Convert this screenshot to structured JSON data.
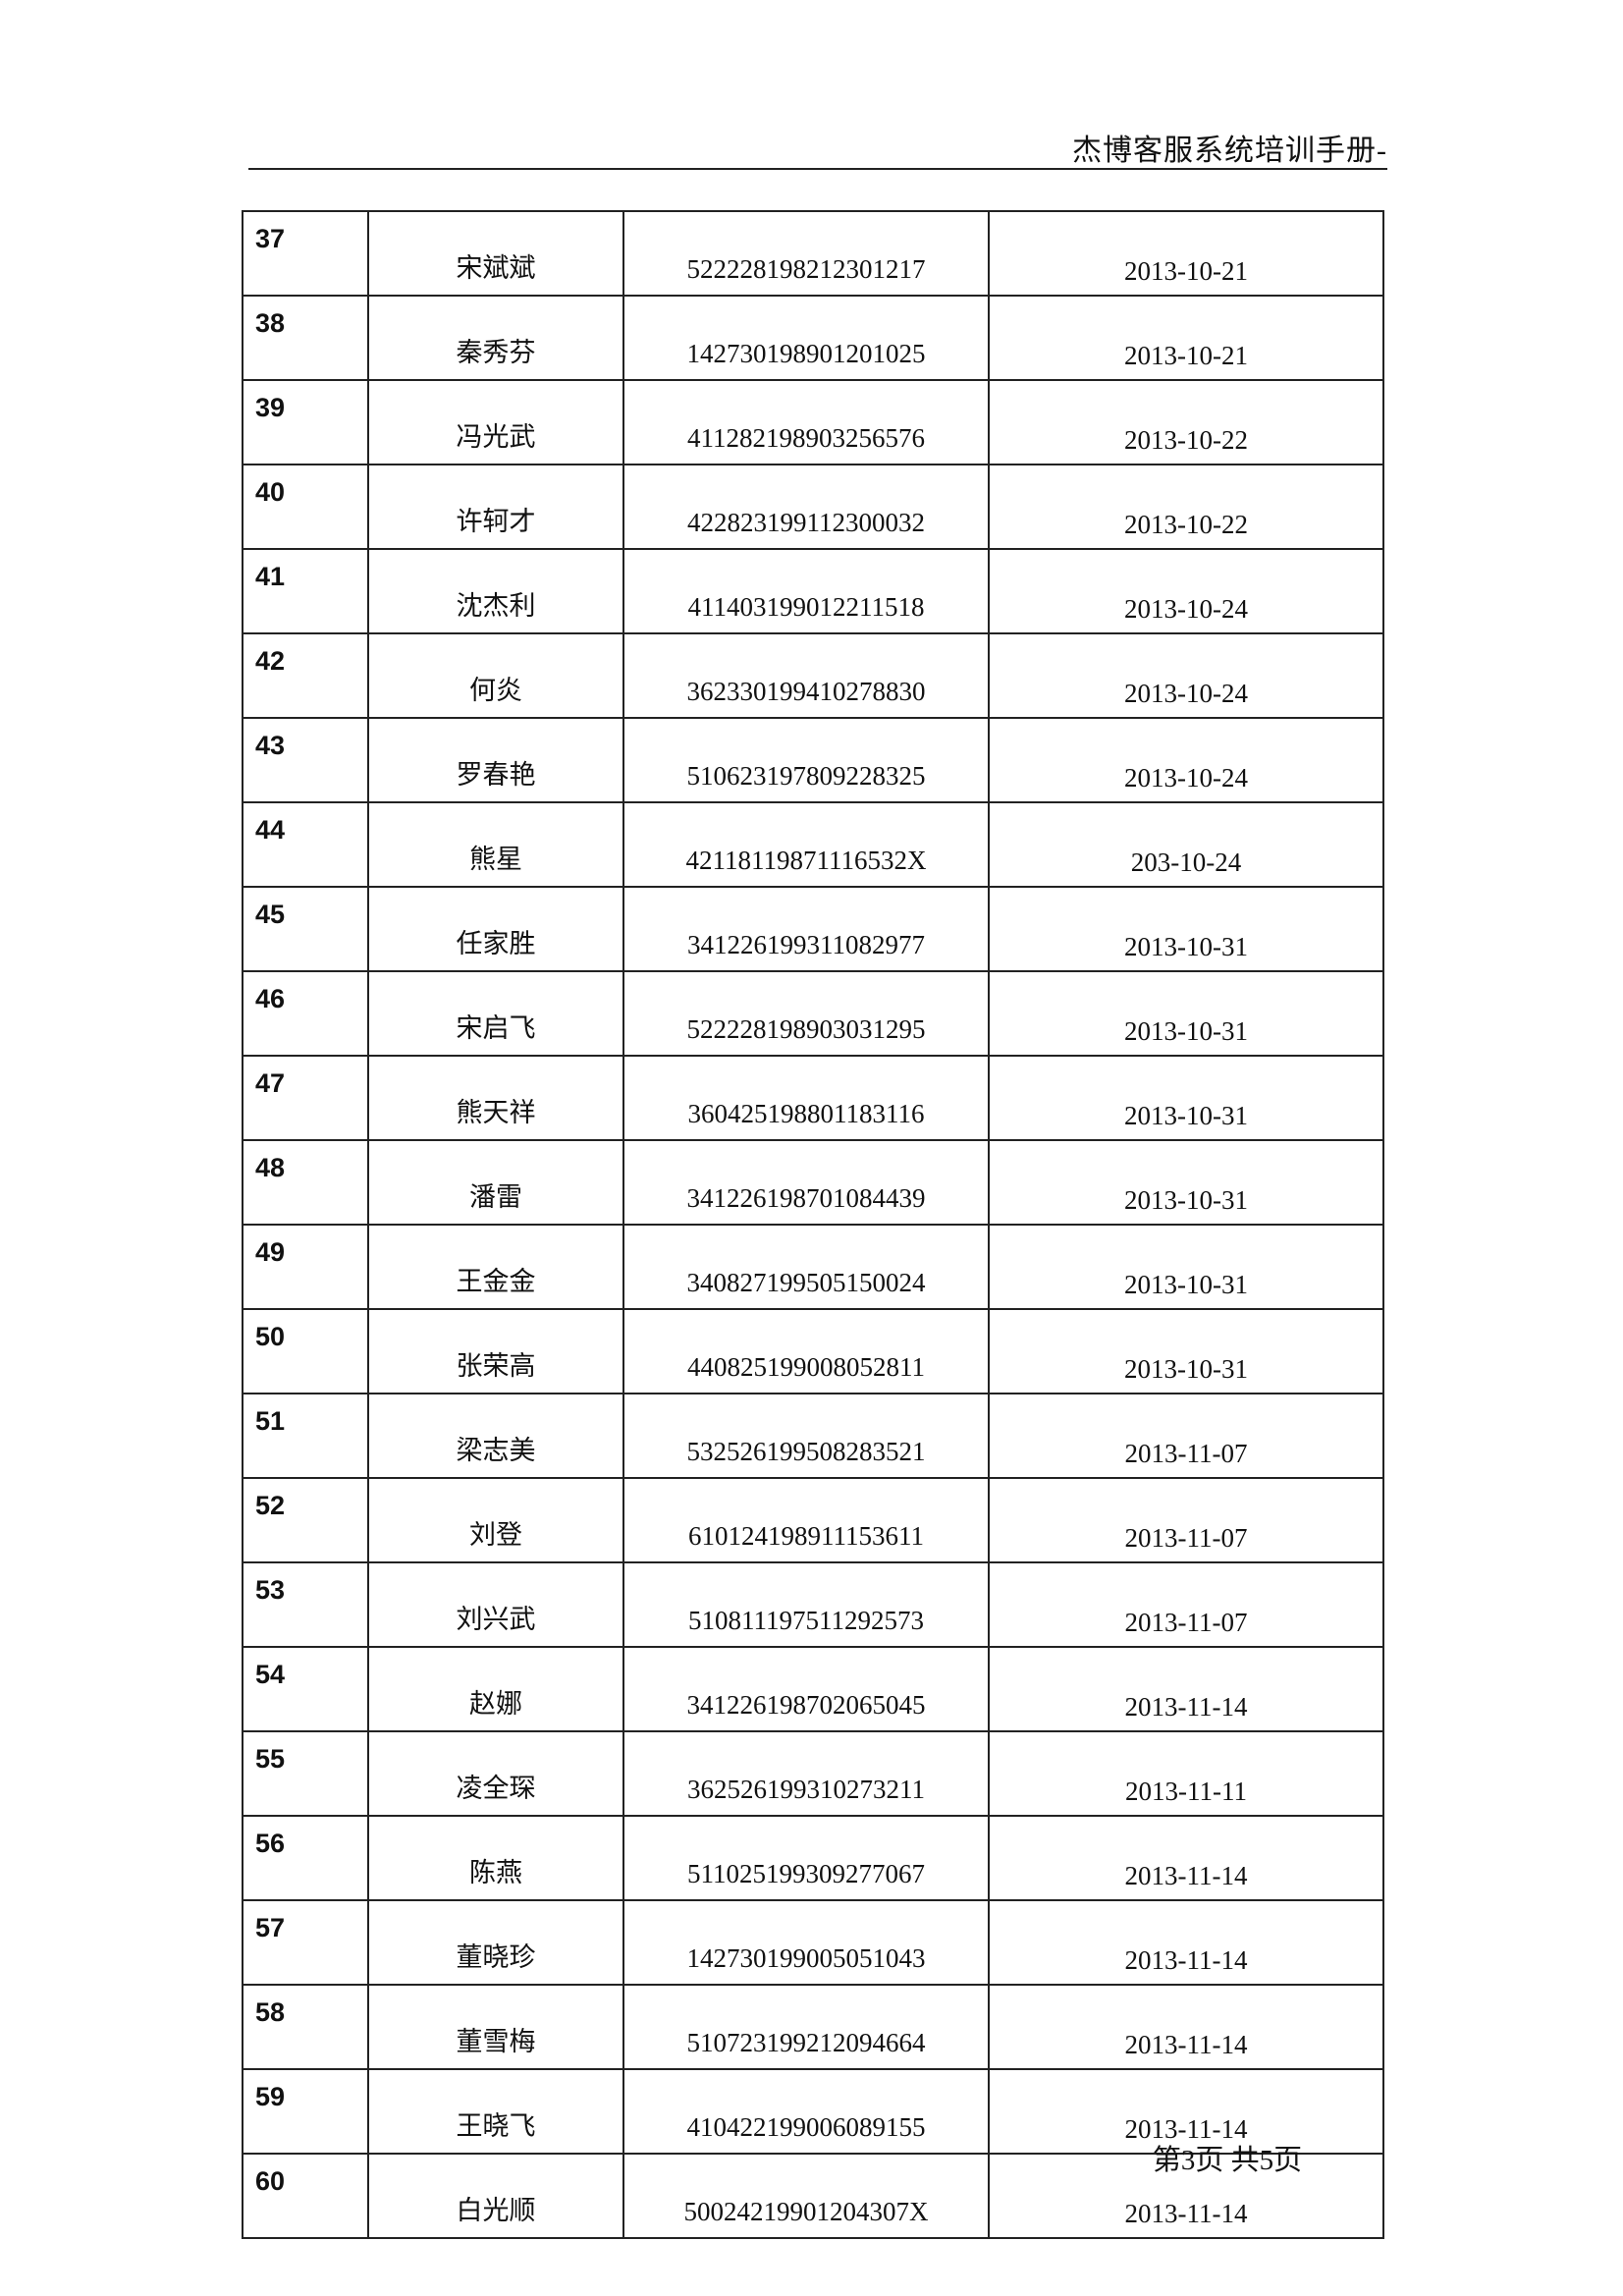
{
  "header": {
    "title": "杰博客服系统培训手册-"
  },
  "table": {
    "rows": [
      {
        "no": "37",
        "name": "宋斌斌",
        "id": "522228198212301217",
        "date": "2013-10-21"
      },
      {
        "no": "38",
        "name": "秦秀芬",
        "id": "142730198901201025",
        "date": "2013-10-21"
      },
      {
        "no": "39",
        "name": "冯光武",
        "id": "411282198903256576",
        "date": "2013-10-22"
      },
      {
        "no": "40",
        "name": "许轲才",
        "id": "422823199112300032",
        "date": "2013-10-22"
      },
      {
        "no": "41",
        "name": "沈杰利",
        "id": "411403199012211518",
        "date": "2013-10-24"
      },
      {
        "no": "42",
        "name": "何炎",
        "id": "362330199410278830",
        "date": "2013-10-24"
      },
      {
        "no": "43",
        "name": "罗春艳",
        "id": "510623197809228325",
        "date": "2013-10-24"
      },
      {
        "no": "44",
        "name": "熊星",
        "id": "42118119871116532X",
        "date": "203-10-24"
      },
      {
        "no": "45",
        "name": "任家胜",
        "id": "341226199311082977",
        "date": "2013-10-31"
      },
      {
        "no": "46",
        "name": "宋启飞",
        "id": "522228198903031295",
        "date": "2013-10-31"
      },
      {
        "no": "47",
        "name": "熊天祥",
        "id": "360425198801183116",
        "date": "2013-10-31"
      },
      {
        "no": "48",
        "name": "潘雷",
        "id": "341226198701084439",
        "date": "2013-10-31"
      },
      {
        "no": "49",
        "name": "王金金",
        "id": "340827199505150024",
        "date": "2013-10-31"
      },
      {
        "no": "50",
        "name": "张荣高",
        "id": "440825199008052811",
        "date": "2013-10-31"
      },
      {
        "no": "51",
        "name": "梁志美",
        "id": "532526199508283521",
        "date": "2013-11-07"
      },
      {
        "no": "52",
        "name": "刘登",
        "id": "610124198911153611",
        "date": "2013-11-07"
      },
      {
        "no": "53",
        "name": "刘兴武",
        "id": "510811197511292573",
        "date": "2013-11-07"
      },
      {
        "no": "54",
        "name": "赵娜",
        "id": "341226198702065045",
        "date": "2013-11-14"
      },
      {
        "no": "55",
        "name": "凌全琛",
        "id": "362526199310273211",
        "date": "2013-11-11"
      },
      {
        "no": "56",
        "name": "陈燕",
        "id": "511025199309277067",
        "date": "2013-11-14"
      },
      {
        "no": "57",
        "name": "董晓珍",
        "id": "142730199005051043",
        "date": "2013-11-14"
      },
      {
        "no": "58",
        "name": "董雪梅",
        "id": "510723199212094664",
        "date": "2013-11-14"
      },
      {
        "no": "59",
        "name": "王晓飞",
        "id": "410422199006089155",
        "date": "2013-11-14"
      },
      {
        "no": "60",
        "name": "白光顺",
        "id": "50024219901204307X",
        "date": "2013-11-14"
      }
    ]
  },
  "footer": {
    "page_info": "第3页  共5页"
  }
}
